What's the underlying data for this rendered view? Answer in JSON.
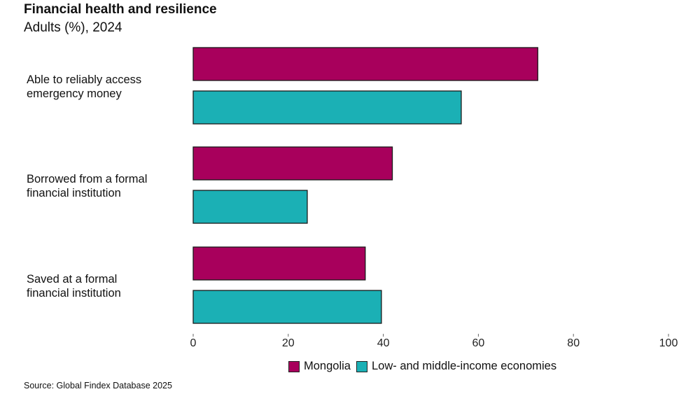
{
  "chart_data": {
    "type": "bar",
    "orientation": "horizontal",
    "title": "Financial health and resilience",
    "subtitle": "Adults (%), 2024",
    "categories": [
      "Able to reliably access emergency money",
      "Borrowed from a formal financial institution",
      "Saved at a formal financial institution"
    ],
    "category_lines": [
      [
        "Able to reliably access",
        "emergency money"
      ],
      [
        "Borrowed from a formal",
        "financial institution"
      ],
      [
        "Saved at a formal",
        "financial institution"
      ]
    ],
    "series": [
      {
        "name": "Mongolia",
        "color": "#A8005C",
        "values": [
          72.5,
          41.9,
          36.2
        ]
      },
      {
        "name": "Low- and middle-income economies",
        "color": "#1BB0B5",
        "values": [
          56.4,
          24.0,
          39.6
        ]
      }
    ],
    "xlim": [
      0,
      100
    ],
    "xticks": [
      "0",
      "20",
      "40",
      "60",
      "80",
      "100"
    ],
    "grid": false,
    "legend": "bottom",
    "source": "Source: Global Findex Database 2025"
  }
}
